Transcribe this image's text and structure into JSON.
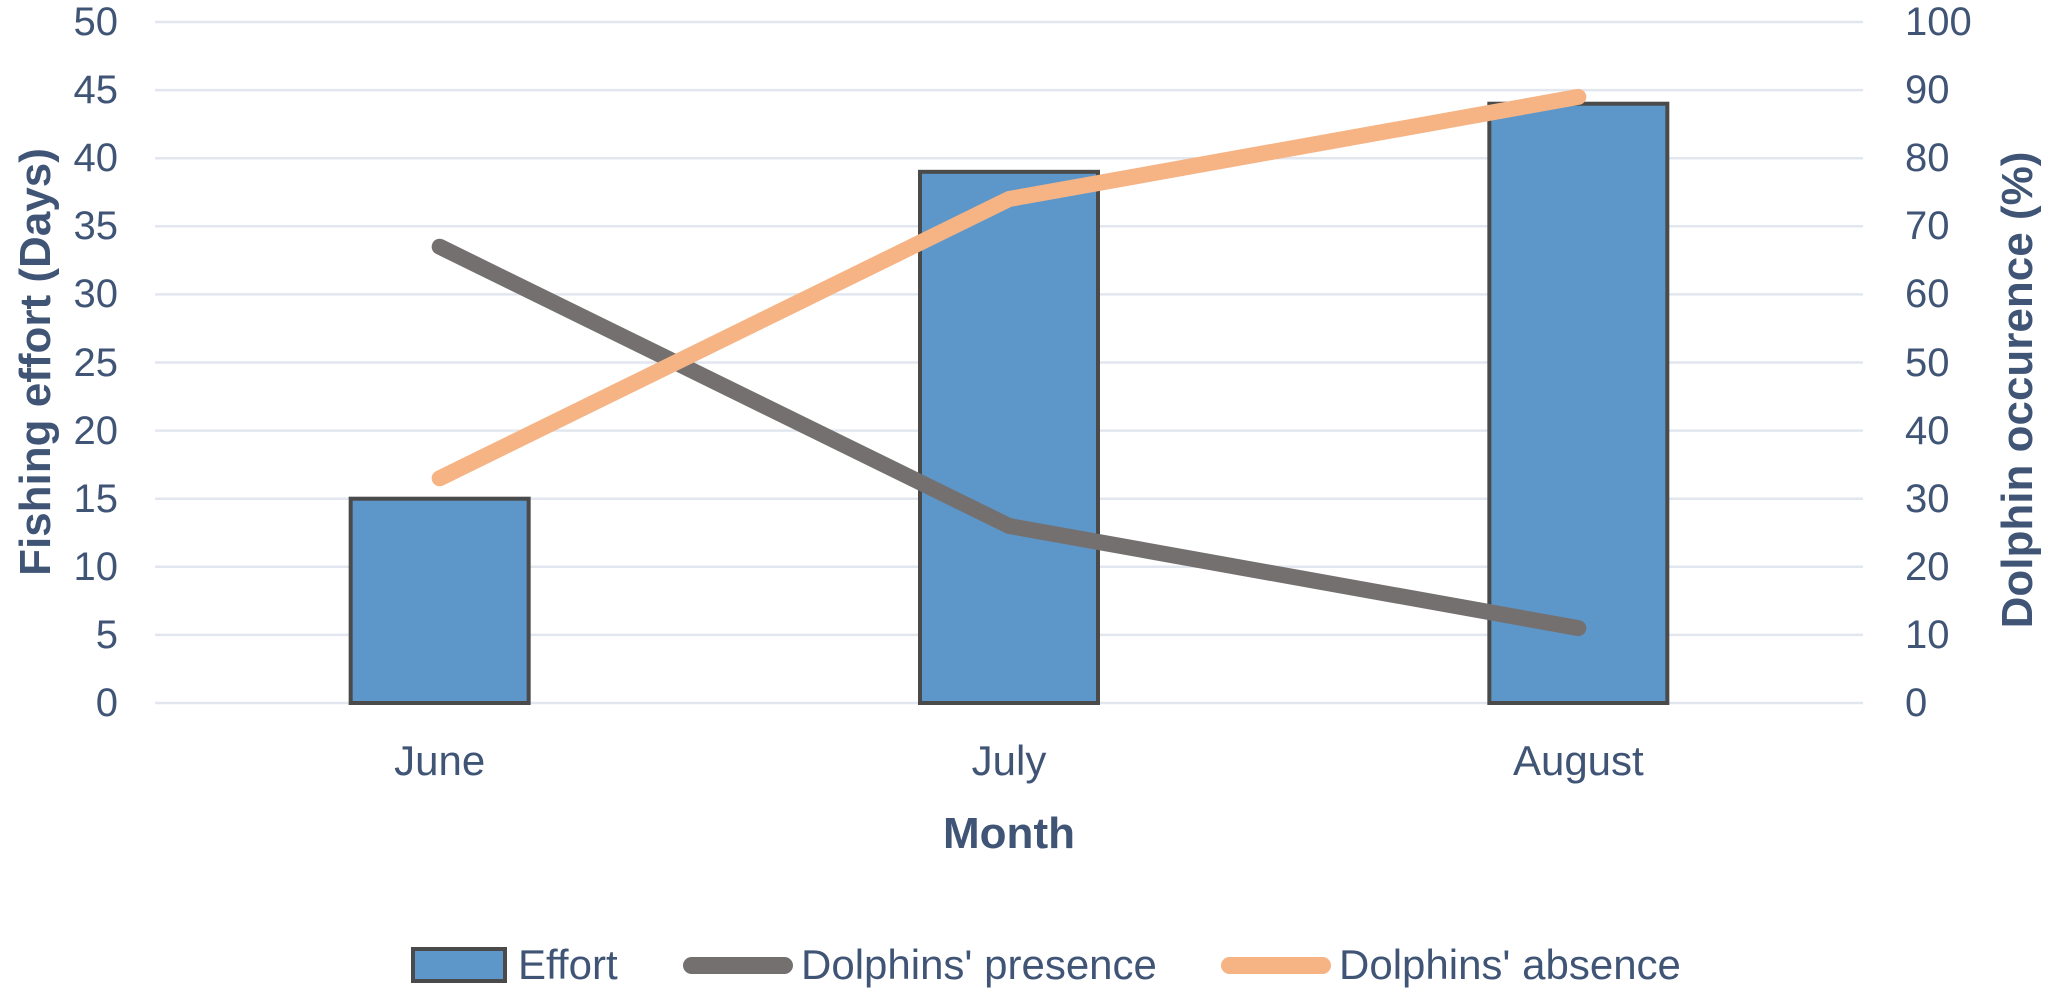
{
  "chart_data": {
    "type": "bar",
    "subtype": "combo-bar-line-dual-axis",
    "categories": [
      "June",
      "July",
      "August"
    ],
    "series": [
      {
        "name": "Effort",
        "type": "bar",
        "axis": "left",
        "values": [
          15,
          39,
          44
        ],
        "fill": "#5D97C9",
        "border": "#4A4A4A"
      },
      {
        "name": "Dolphins' presence",
        "type": "line",
        "axis": "right",
        "values": [
          67,
          26,
          11
        ],
        "color": "#757070"
      },
      {
        "name": "Dolphins' absence",
        "type": "line",
        "axis": "right",
        "values": [
          33,
          74,
          89
        ],
        "color": "#F6B384"
      }
    ],
    "left_axis": {
      "title": "Fishing effort (Days)",
      "min": 0,
      "max": 50,
      "step": 5,
      "ticks": [
        0,
        5,
        10,
        15,
        20,
        25,
        30,
        35,
        40,
        45,
        50
      ]
    },
    "right_axis": {
      "title": "Dolphin occurence (%)",
      "min": 0,
      "max": 100,
      "step": 10,
      "ticks": [
        0,
        10,
        20,
        30,
        40,
        50,
        60,
        70,
        80,
        90,
        100
      ]
    },
    "x_axis": {
      "title": "Month"
    },
    "grid": true,
    "legend_position": "bottom",
    "background_color": "#FFFFFF",
    "gridline_color": "#E2E7EF",
    "text_color": "#405576"
  }
}
